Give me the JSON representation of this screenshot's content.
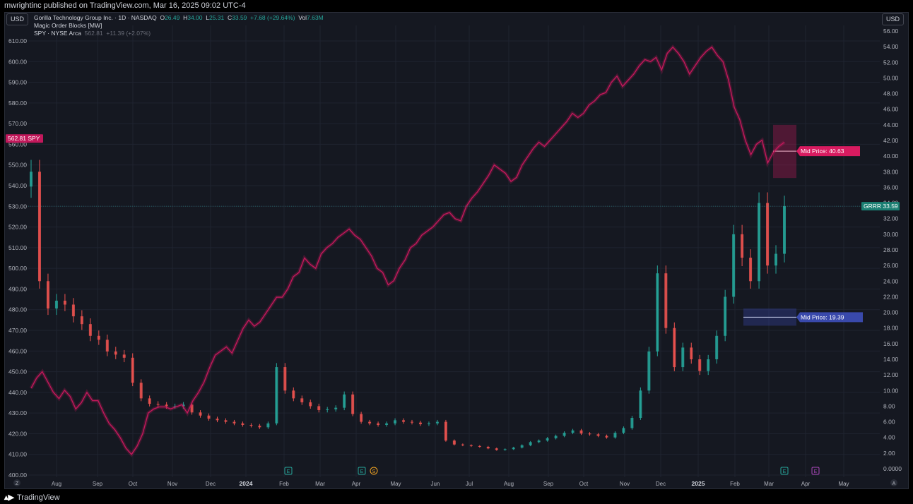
{
  "header": {
    "published_by": "mwrightinc published on TradingView.com, Mar 16, 2025 09:02 UTC-4"
  },
  "left_currency": "USD",
  "right_currency": "USD",
  "legend": {
    "symbol_name": "Gorilla Technology Group Inc. · 1D · NASDAQ",
    "o_label": "O",
    "o_value": "26.49",
    "h_label": "H",
    "h_value": "34.00",
    "l_label": "L",
    "l_value": "25.31",
    "c_label": "C",
    "c_value": "33.59",
    "change": "+7.68 (+29.64%)",
    "vol_label": "Vol",
    "vol_value": "7.63M",
    "indicator": "Magic Order Blocks [MW]",
    "spy_name": "SPY · NYSE Arca",
    "spy_value": "562.81",
    "spy_change": "+11.39 (+2.07%)"
  },
  "footer": {
    "brand": "TradingView",
    "z_button": "Z",
    "a_button": "A"
  },
  "colors": {
    "background": "#151821",
    "up": "#26a69a",
    "down": "#ef5350",
    "spy_line": "#c2185b",
    "bear_block": "#d81b60",
    "bull_block": "#3949ab",
    "grrr_badge": "#1b7f73"
  },
  "chart_data": {
    "type": "line",
    "title": "Gorilla Technology Group Inc. · 1D · NASDAQ",
    "x_ticks": [
      "Aug",
      "Sep",
      "Oct",
      "Nov",
      "Dec",
      "2024",
      "Feb",
      "Mar",
      "Apr",
      "May",
      "Jun",
      "Jul",
      "Aug",
      "Sep",
      "Oct",
      "Nov",
      "Dec",
      "2025",
      "Feb",
      "Mar",
      "Apr",
      "May"
    ],
    "left_axis": {
      "label": "SPY",
      "ticks": [
        "610.00",
        "600.00",
        "590.00",
        "580.00",
        "570.00",
        "560.00",
        "550.00",
        "540.00",
        "530.00",
        "520.00",
        "510.00",
        "500.00",
        "490.00",
        "480.00",
        "470.00",
        "460.00",
        "450.00",
        "440.00",
        "430.00",
        "420.00",
        "410.00",
        "400.00"
      ],
      "ylim": [
        400,
        612
      ]
    },
    "right_axis": {
      "label": "GRRR",
      "ticks": [
        "56.00",
        "54.00",
        "52.00",
        "50.00",
        "48.00",
        "46.00",
        "44.00",
        "42.00",
        "40.00",
        "38.00",
        "36.00",
        "34.00",
        "32.00",
        "30.00",
        "28.00",
        "26.00",
        "24.00",
        "22.00",
        "20.00",
        "18.00",
        "16.00",
        "14.00",
        "12.00",
        "10.00",
        "8.00",
        "6.00",
        "4.00",
        "2.00",
        "0.0000"
      ],
      "ylim": [
        0,
        56
      ]
    },
    "series": [
      {
        "name": "SPY",
        "axis": "left",
        "values": [
          442,
          447,
          450,
          445,
          440,
          437,
          441,
          438,
          432,
          435,
          440,
          436,
          436,
          430,
          425,
          422,
          418,
          413,
          410,
          414,
          420,
          430,
          432,
          433,
          433,
          432,
          433,
          434,
          430,
          436,
          440,
          445,
          452,
          458,
          460,
          462,
          459,
          465,
          471,
          475,
          472,
          474,
          478,
          482,
          486,
          486,
          490,
          496,
          498,
          505,
          502,
          500,
          507,
          510,
          512,
          515,
          517,
          519,
          516,
          514,
          510,
          506,
          500,
          498,
          492,
          494,
          500,
          504,
          510,
          512,
          516,
          518,
          520,
          523,
          526,
          527,
          524,
          523,
          530,
          534,
          537,
          541,
          545,
          550,
          548,
          546,
          542,
          544,
          550,
          554,
          558,
          561,
          559,
          562,
          565,
          568,
          571,
          575,
          573,
          575,
          579,
          581,
          584,
          585,
          590,
          593,
          588,
          591,
          594,
          598,
          601,
          600,
          602,
          596,
          604,
          607,
          604,
          600,
          594,
          598,
          602,
          605,
          607,
          603,
          600,
          591,
          578,
          572,
          562,
          555,
          560,
          562,
          551,
          556,
          559,
          561
        ]
      },
      {
        "name": "GRRR",
        "axis": "right",
        "values": [
          38.0,
          24.0,
          20.5,
          21.5,
          21.0,
          19.5,
          18.5,
          17.0,
          16.5,
          15.0,
          14.6,
          14.2,
          11.0,
          9.0,
          8.3,
          8.2,
          8.0,
          8.0,
          8.2,
          7.2,
          6.8,
          6.4,
          6.2,
          6.0,
          5.8,
          5.6,
          5.5,
          5.3,
          5.8,
          13.0,
          10.0,
          9.0,
          8.5,
          8.0,
          7.5,
          7.6,
          7.8,
          9.5,
          7.0,
          6.0,
          5.8,
          5.6,
          5.8,
          6.2,
          6.0,
          5.9,
          5.7,
          5.8,
          6.0,
          3.6,
          3.1,
          3.0,
          2.9,
          2.8,
          2.6,
          2.4,
          2.5,
          2.7,
          3.0,
          3.4,
          3.6,
          3.9,
          4.2,
          4.6,
          4.9,
          4.5,
          4.4,
          4.2,
          4.0,
          4.6,
          5.2,
          6.5,
          10.0,
          15.0,
          25.0,
          18.0,
          13.0,
          15.5,
          14.0,
          12.5,
          14.0,
          17.0,
          22.0,
          30.0,
          27.0,
          24.0,
          34.0,
          26.0,
          27.5,
          33.59
        ]
      }
    ],
    "annotations": [
      {
        "text": "Mid Price: 40.63",
        "value": 40.63,
        "block": "bearish",
        "top": 44.0,
        "bottom": 37.2
      },
      {
        "text": "Mid Price: 19.39",
        "value": 19.39,
        "block": "bullish",
        "top": 20.5,
        "bottom": 18.3
      }
    ],
    "price_badges": [
      {
        "symbol": "SPY",
        "value": "562.81",
        "axis": "left"
      },
      {
        "symbol": "GRRR",
        "value": "33.59",
        "axis": "right"
      }
    ],
    "event_markers": [
      "E",
      "E",
      "S",
      "E",
      "E"
    ],
    "grid": true
  }
}
